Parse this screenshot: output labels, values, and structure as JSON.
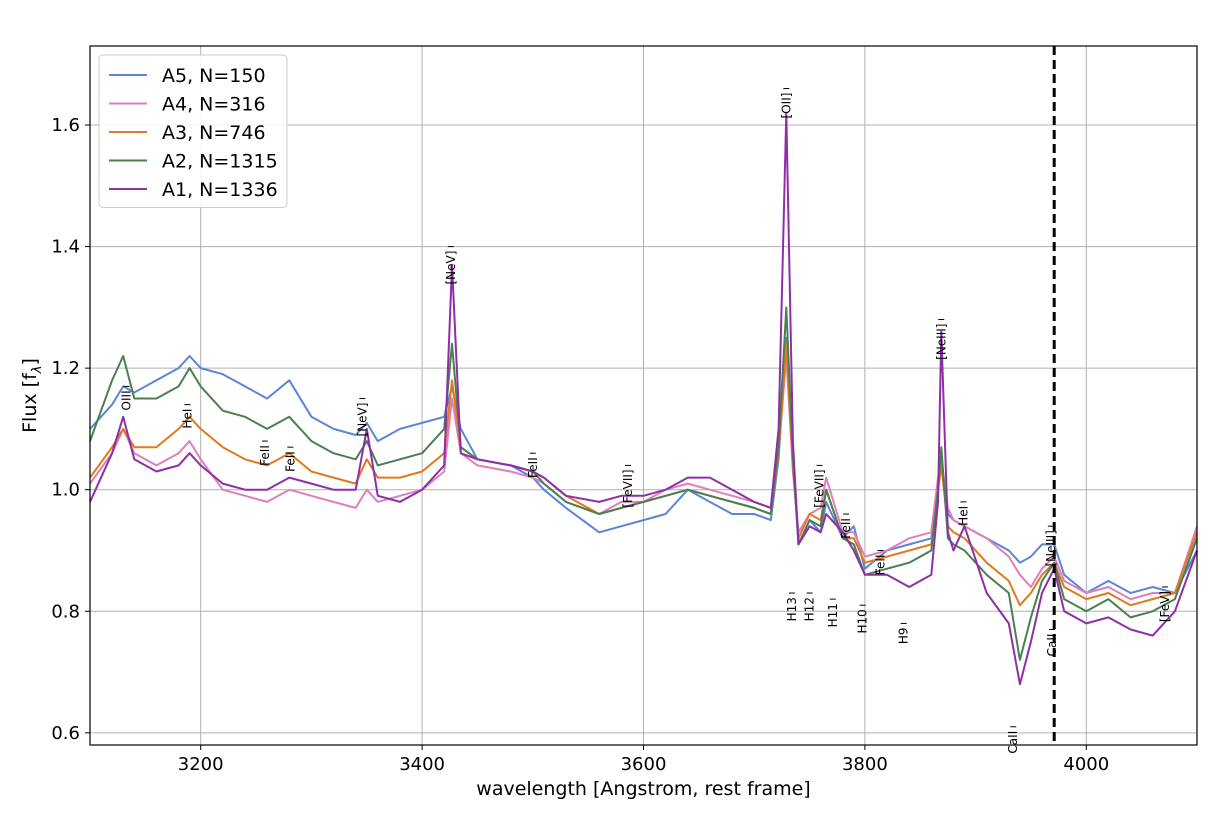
{
  "chart_data": {
    "type": "line",
    "xlabel": "wavelength [Angstrom, rest frame]",
    "ylabel": "Flux [f",
    "ylabel_sub": "λ",
    "ylabel_close": "]",
    "xlim": [
      3100,
      4100
    ],
    "ylim": [
      0.58,
      1.73
    ],
    "x_ticks": [
      3200,
      3400,
      3600,
      3800,
      4000
    ],
    "x_tick_labels": [
      "3200",
      "3400",
      "3600",
      "3800",
      "4000"
    ],
    "y_ticks": [
      0.6,
      0.8,
      1.0,
      1.2,
      1.4,
      1.6
    ],
    "y_tick_labels": [
      "0.6",
      "0.8",
      "1.0",
      "1.2",
      "1.4",
      "1.6"
    ],
    "grid": true,
    "legend_position": "top-left",
    "vertical_line": {
      "x": 3971,
      "style": "dashed",
      "color": "#000000"
    },
    "series": [
      {
        "name": "A5, N=150",
        "color": "#5b86d6",
        "x": [
          3100,
          3120,
          3130,
          3140,
          3160,
          3180,
          3190,
          3200,
          3220,
          3240,
          3260,
          3280,
          3300,
          3320,
          3340,
          3350,
          3360,
          3380,
          3400,
          3420,
          3427,
          3435,
          3450,
          3480,
          3500,
          3510,
          3530,
          3560,
          3580,
          3600,
          3620,
          3640,
          3660,
          3680,
          3700,
          3715,
          3722,
          3729,
          3735,
          3740,
          3750,
          3760,
          3765,
          3780,
          3790,
          3800,
          3820,
          3840,
          3860,
          3866,
          3869,
          3875,
          3880,
          3890,
          3910,
          3930,
          3940,
          3950,
          3960,
          3971,
          3980,
          4000,
          4020,
          4040,
          4060,
          4080,
          4100
        ],
        "y": [
          1.1,
          1.14,
          1.17,
          1.16,
          1.18,
          1.2,
          1.22,
          1.2,
          1.19,
          1.17,
          1.15,
          1.18,
          1.12,
          1.1,
          1.09,
          1.11,
          1.08,
          1.1,
          1.11,
          1.12,
          1.17,
          1.1,
          1.05,
          1.04,
          1.02,
          1.0,
          0.97,
          0.93,
          0.94,
          0.95,
          0.96,
          1.0,
          0.98,
          0.96,
          0.96,
          0.95,
          1.05,
          1.25,
          1.05,
          0.91,
          0.95,
          0.93,
          0.98,
          0.92,
          0.94,
          0.87,
          0.9,
          0.91,
          0.92,
          1.0,
          1.04,
          0.96,
          0.95,
          0.94,
          0.92,
          0.9,
          0.88,
          0.89,
          0.91,
          0.91,
          0.86,
          0.83,
          0.85,
          0.83,
          0.84,
          0.83,
          0.9
        ]
      },
      {
        "name": "A4, N=316",
        "color": "#e07fbb",
        "x": [
          3100,
          3120,
          3130,
          3140,
          3160,
          3180,
          3190,
          3200,
          3220,
          3240,
          3260,
          3280,
          3300,
          3320,
          3340,
          3350,
          3360,
          3380,
          3400,
          3420,
          3427,
          3435,
          3450,
          3480,
          3500,
          3510,
          3530,
          3560,
          3580,
          3600,
          3620,
          3640,
          3660,
          3680,
          3700,
          3715,
          3722,
          3729,
          3735,
          3740,
          3750,
          3760,
          3765,
          3780,
          3790,
          3800,
          3820,
          3840,
          3860,
          3866,
          3869,
          3875,
          3880,
          3890,
          3910,
          3930,
          3940,
          3950,
          3960,
          3971,
          3980,
          4000,
          4020,
          4040,
          4060,
          4080,
          4100
        ],
        "y": [
          1.01,
          1.06,
          1.1,
          1.06,
          1.04,
          1.06,
          1.08,
          1.05,
          1.0,
          0.99,
          0.98,
          1.0,
          0.99,
          0.98,
          0.97,
          1.0,
          0.98,
          0.99,
          1.0,
          1.03,
          1.15,
          1.06,
          1.04,
          1.03,
          1.02,
          1.01,
          0.98,
          0.96,
          0.98,
          0.98,
          1.0,
          1.01,
          1.0,
          0.99,
          0.98,
          0.97,
          1.06,
          1.22,
          1.03,
          0.93,
          0.96,
          0.97,
          1.02,
          0.93,
          0.93,
          0.89,
          0.9,
          0.92,
          0.93,
          1.02,
          1.05,
          0.97,
          0.95,
          0.94,
          0.92,
          0.89,
          0.86,
          0.84,
          0.87,
          0.89,
          0.85,
          0.83,
          0.84,
          0.82,
          0.83,
          0.83,
          0.94
        ]
      },
      {
        "name": "A3, N=746",
        "color": "#e07a1f",
        "x": [
          3100,
          3120,
          3130,
          3140,
          3160,
          3180,
          3190,
          3200,
          3220,
          3240,
          3260,
          3280,
          3300,
          3320,
          3340,
          3350,
          3360,
          3380,
          3400,
          3420,
          3427,
          3435,
          3450,
          3480,
          3500,
          3510,
          3530,
          3560,
          3580,
          3600,
          3620,
          3640,
          3660,
          3680,
          3700,
          3715,
          3722,
          3729,
          3735,
          3740,
          3750,
          3760,
          3765,
          3780,
          3790,
          3800,
          3820,
          3840,
          3860,
          3866,
          3869,
          3875,
          3880,
          3890,
          3910,
          3930,
          3940,
          3950,
          3960,
          3971,
          3980,
          4000,
          4020,
          4040,
          4060,
          4080,
          4100
        ],
        "y": [
          1.02,
          1.07,
          1.1,
          1.07,
          1.07,
          1.1,
          1.12,
          1.1,
          1.07,
          1.05,
          1.04,
          1.06,
          1.03,
          1.02,
          1.01,
          1.05,
          1.02,
          1.02,
          1.03,
          1.06,
          1.18,
          1.07,
          1.05,
          1.04,
          1.03,
          1.02,
          0.99,
          0.96,
          0.97,
          0.98,
          0.99,
          1.0,
          0.99,
          0.98,
          0.97,
          0.96,
          1.06,
          1.24,
          1.04,
          0.92,
          0.96,
          0.95,
          1.0,
          0.92,
          0.92,
          0.88,
          0.89,
          0.9,
          0.91,
          1.0,
          1.04,
          0.94,
          0.93,
          0.92,
          0.88,
          0.85,
          0.81,
          0.83,
          0.86,
          0.88,
          0.84,
          0.82,
          0.83,
          0.81,
          0.82,
          0.83,
          0.93
        ]
      },
      {
        "name": "A2, N=1315",
        "color": "#4a8050",
        "x": [
          3100,
          3120,
          3130,
          3140,
          3160,
          3180,
          3190,
          3200,
          3220,
          3240,
          3260,
          3280,
          3300,
          3320,
          3340,
          3350,
          3360,
          3380,
          3400,
          3420,
          3427,
          3435,
          3450,
          3480,
          3500,
          3510,
          3530,
          3560,
          3580,
          3600,
          3620,
          3640,
          3660,
          3680,
          3700,
          3715,
          3722,
          3729,
          3735,
          3740,
          3750,
          3760,
          3765,
          3780,
          3790,
          3800,
          3820,
          3840,
          3860,
          3866,
          3869,
          3875,
          3880,
          3890,
          3910,
          3930,
          3940,
          3950,
          3960,
          3971,
          3980,
          4000,
          4020,
          4040,
          4060,
          4080,
          4100
        ],
        "y": [
          1.08,
          1.18,
          1.22,
          1.15,
          1.15,
          1.17,
          1.2,
          1.17,
          1.13,
          1.12,
          1.1,
          1.12,
          1.08,
          1.06,
          1.05,
          1.08,
          1.04,
          1.05,
          1.06,
          1.1,
          1.24,
          1.07,
          1.05,
          1.04,
          1.03,
          1.01,
          0.98,
          0.96,
          0.97,
          0.98,
          0.99,
          1.0,
          0.99,
          0.98,
          0.97,
          0.96,
          1.07,
          1.3,
          1.05,
          0.91,
          0.95,
          0.94,
          1.0,
          0.92,
          0.91,
          0.86,
          0.87,
          0.88,
          0.9,
          1.0,
          1.07,
          0.92,
          0.91,
          0.9,
          0.86,
          0.83,
          0.72,
          0.79,
          0.85,
          0.88,
          0.82,
          0.8,
          0.82,
          0.79,
          0.8,
          0.82,
          0.92
        ]
      },
      {
        "name": "A1, N=1336",
        "color": "#8e2fa8",
        "x": [
          3100,
          3120,
          3130,
          3140,
          3160,
          3180,
          3190,
          3200,
          3220,
          3240,
          3260,
          3280,
          3300,
          3320,
          3340,
          3350,
          3360,
          3380,
          3400,
          3420,
          3427,
          3435,
          3450,
          3480,
          3500,
          3510,
          3530,
          3560,
          3580,
          3600,
          3620,
          3640,
          3660,
          3680,
          3700,
          3715,
          3722,
          3729,
          3735,
          3740,
          3750,
          3760,
          3765,
          3780,
          3790,
          3800,
          3820,
          3840,
          3860,
          3866,
          3869,
          3875,
          3880,
          3890,
          3910,
          3930,
          3940,
          3950,
          3960,
          3971,
          3980,
          4000,
          4020,
          4040,
          4060,
          4080,
          4100
        ],
        "y": [
          0.98,
          1.06,
          1.12,
          1.05,
          1.03,
          1.04,
          1.06,
          1.04,
          1.01,
          1.0,
          1.0,
          1.02,
          1.01,
          1.0,
          1.0,
          1.1,
          0.99,
          0.98,
          1.0,
          1.04,
          1.37,
          1.06,
          1.05,
          1.04,
          1.03,
          1.02,
          0.99,
          0.98,
          0.99,
          0.99,
          1.0,
          1.02,
          1.02,
          1.0,
          0.98,
          0.97,
          1.1,
          1.62,
          1.08,
          0.91,
          0.94,
          0.93,
          0.96,
          0.93,
          0.9,
          0.86,
          0.86,
          0.84,
          0.86,
          0.98,
          1.26,
          0.93,
          0.9,
          0.94,
          0.83,
          0.78,
          0.68,
          0.75,
          0.83,
          0.87,
          0.8,
          0.78,
          0.79,
          0.77,
          0.76,
          0.8,
          0.9
        ]
      }
    ],
    "line_labels": [
      {
        "text": "[OII]",
        "x": 3729,
        "y": 1.66
      },
      {
        "text": "[NeV]",
        "x": 3426,
        "y": 1.4
      },
      {
        "text": "[NeIII]",
        "x": 3869,
        "y": 1.28
      },
      {
        "text": "OIII",
        "x": 3133,
        "y": 1.17
      },
      {
        "text": "[NeV]",
        "x": 3346,
        "y": 1.15
      },
      {
        "text": "HeI",
        "x": 3188,
        "y": 1.14
      },
      {
        "text": "FeII",
        "x": 3258,
        "y": 1.08
      },
      {
        "text": "FeII",
        "x": 3281,
        "y": 1.07
      },
      {
        "text": "FeII",
        "x": 3500,
        "y": 1.06
      },
      {
        "text": "[FeVII]",
        "x": 3586,
        "y": 1.04
      },
      {
        "text": "[FeVII]",
        "x": 3759,
        "y": 1.04
      },
      {
        "text": "FeII",
        "x": 3783,
        "y": 0.96
      },
      {
        "text": "HeI",
        "x": 3889,
        "y": 0.98
      },
      {
        "text": "FeII",
        "x": 3814,
        "y": 0.9
      },
      {
        "text": "[NeIII]",
        "x": 3968,
        "y": 0.94
      },
      {
        "text": "[FeV]",
        "x": 4071,
        "y": 0.84
      },
      {
        "text": "H13",
        "x": 3734,
        "y": 0.83
      },
      {
        "text": "H12",
        "x": 3750,
        "y": 0.83
      },
      {
        "text": "H11",
        "x": 3771,
        "y": 0.82
      },
      {
        "text": "H10",
        "x": 3798,
        "y": 0.81
      },
      {
        "text": "H9",
        "x": 3835,
        "y": 0.78
      },
      {
        "text": "CaII",
        "x": 3969,
        "y": 0.77
      },
      {
        "text": "CaII",
        "x": 3934,
        "y": 0.61
      }
    ]
  }
}
